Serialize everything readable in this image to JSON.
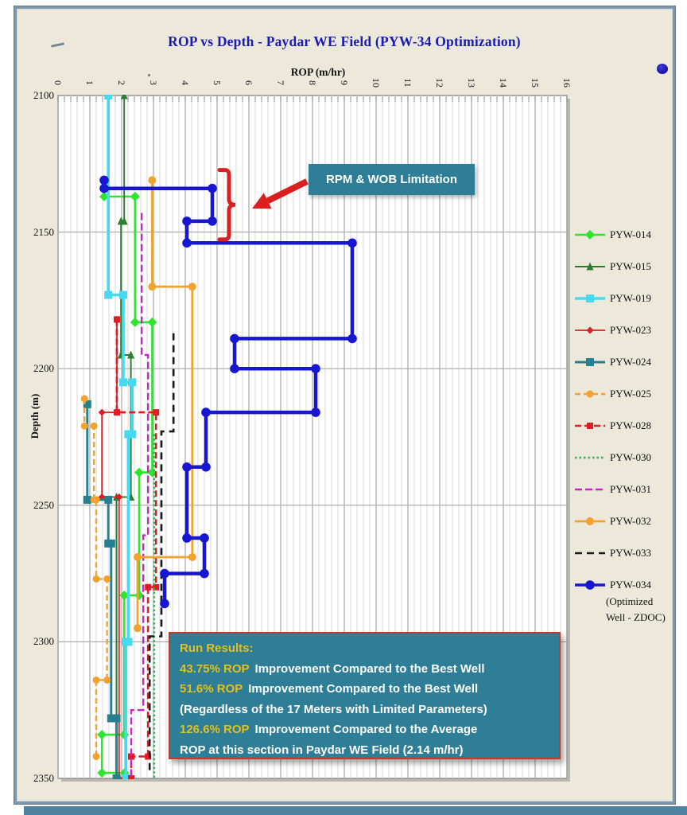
{
  "chart_data": {
    "type": "line",
    "step": true,
    "title": "ROP vs Depth - Paydar WE Field (PYW-34 Optimization)",
    "xlabel": "ROP (m/hr)",
    "ylabel": "Depth (m)",
    "xlim": [
      0,
      16
    ],
    "ylim": [
      2100,
      2350
    ],
    "y_inverted": true,
    "x_ticks": [
      0,
      1,
      2,
      3,
      4,
      5,
      6,
      7,
      8,
      9,
      10,
      11,
      12,
      13,
      14,
      15,
      16
    ],
    "x_minor_step": 0.2,
    "y_ticks": [
      2100,
      2150,
      2200,
      2250,
      2300,
      2350
    ],
    "grid": {
      "minor_color": "#dadada",
      "major_color": "#a6a6a6",
      "horizontal_color": "#a6a6a6",
      "plot_bg": "#ffffff",
      "plot_border": "#8c8c8c",
      "plot_shadow": "#b9b7ae"
    },
    "legend_position": "right",
    "series": [
      {
        "name": "PYW-014",
        "color": "#2ee52e",
        "dash": "",
        "width": 2.6,
        "marker": "diamond",
        "msize": 5,
        "points": [
          [
            1.45,
            2137
          ],
          [
            2.42,
            2137
          ],
          [
            2.42,
            2183
          ],
          [
            2.96,
            2183
          ],
          [
            2.96,
            2238
          ],
          [
            2.55,
            2238
          ],
          [
            2.55,
            2283
          ],
          [
            2.08,
            2283
          ],
          [
            2.08,
            2334
          ],
          [
            1.38,
            2334
          ],
          [
            1.38,
            2348
          ],
          [
            2.09,
            2348
          ]
        ]
      },
      {
        "name": "PYW-015",
        "color": "#2f7d32",
        "dash": "",
        "width": 2,
        "marker": "triangle",
        "msize": 4.5,
        "points": [
          [
            2.08,
            2100
          ],
          [
            2.08,
            2146
          ],
          [
            1.98,
            2146
          ],
          [
            1.98,
            2195
          ],
          [
            2.29,
            2195
          ],
          [
            2.29,
            2247
          ],
          [
            1.84,
            2247
          ],
          [
            1.84,
            2350
          ]
        ]
      },
      {
        "name": "PYW-019",
        "color": "#45d9f2",
        "dash": "",
        "width": 3.6,
        "marker": "square",
        "msize": 5,
        "points": [
          [
            1.58,
            2100
          ],
          [
            1.58,
            2173
          ],
          [
            2.05,
            2173
          ],
          [
            2.05,
            2205
          ],
          [
            2.33,
            2205
          ],
          [
            2.33,
            2224
          ],
          [
            2.21,
            2224
          ],
          [
            2.21,
            2300
          ],
          [
            2.13,
            2300
          ],
          [
            2.13,
            2350
          ]
        ]
      },
      {
        "name": "PYW-023",
        "color": "#dc1e24",
        "dash": "",
        "width": 1.8,
        "marker": "diamond",
        "msize": 3.5,
        "points": [
          [
            1.85,
            2182
          ],
          [
            1.85,
            2216
          ],
          [
            1.38,
            2216
          ],
          [
            1.38,
            2247
          ],
          [
            1.92,
            2247
          ],
          [
            1.92,
            2350
          ]
        ]
      },
      {
        "name": "PYW-024",
        "color": "#27808f",
        "dash": "",
        "width": 3,
        "marker": "square",
        "msize": 5,
        "points": [
          [
            0.92,
            2213
          ],
          [
            0.92,
            2248
          ],
          [
            1.58,
            2248
          ],
          [
            1.58,
            2264
          ],
          [
            1.67,
            2264
          ],
          [
            1.67,
            2328
          ],
          [
            1.84,
            2328
          ],
          [
            1.84,
            2350
          ]
        ]
      },
      {
        "name": "PYW-025",
        "color": "#f2a22e",
        "dash": "7 4",
        "width": 2.4,
        "marker": "circle",
        "msize": 4.5,
        "points": [
          [
            0.83,
            2211
          ],
          [
            0.83,
            2221
          ],
          [
            1.13,
            2221
          ],
          [
            1.13,
            2248
          ],
          [
            1.2,
            2248
          ],
          [
            1.2,
            2277
          ],
          [
            1.54,
            2277
          ],
          [
            1.54,
            2314
          ],
          [
            1.2,
            2314
          ],
          [
            1.2,
            2342
          ]
        ]
      },
      {
        "name": "PYW-028",
        "color": "#e31b23",
        "dash": "8 4",
        "width": 2.6,
        "marker": "square",
        "msize": 4,
        "points": [
          [
            1.85,
            2182
          ],
          [
            1.85,
            2216
          ],
          [
            3.08,
            2216
          ],
          [
            3.08,
            2280
          ],
          [
            2.83,
            2280
          ],
          [
            2.83,
            2342
          ],
          [
            2.3,
            2342
          ],
          [
            2.3,
            2350
          ]
        ]
      },
      {
        "name": "PYW-030",
        "color": "#2fae60",
        "dash": "2.5 3",
        "width": 2.4,
        "marker": "none",
        "msize": 0,
        "points": [
          [
            3.02,
            2224
          ],
          [
            3.02,
            2350
          ]
        ]
      },
      {
        "name": "PYW-031",
        "color": "#c924c9",
        "dash": "9 4",
        "width": 2.4,
        "marker": "none",
        "msize": 0,
        "points": [
          [
            2.63,
            2143
          ],
          [
            2.63,
            2195
          ],
          [
            2.83,
            2195
          ],
          [
            2.83,
            2261
          ],
          [
            2.68,
            2261
          ],
          [
            2.68,
            2325
          ],
          [
            2.3,
            2325
          ],
          [
            2.3,
            2350
          ]
        ]
      },
      {
        "name": "PYW-032",
        "color": "#f2a22e",
        "dash": "",
        "width": 2.8,
        "marker": "circle",
        "msize": 5,
        "points": [
          [
            2.96,
            2131
          ],
          [
            2.96,
            2170
          ],
          [
            4.22,
            2170
          ],
          [
            4.22,
            2269
          ],
          [
            2.5,
            2269
          ],
          [
            2.5,
            2295
          ]
        ]
      },
      {
        "name": "PYW-033",
        "color": "#1a1a1a",
        "dash": "9 6",
        "width": 2.6,
        "marker": "none",
        "msize": 0,
        "points": [
          [
            3.63,
            2187
          ],
          [
            3.63,
            2223
          ],
          [
            3.25,
            2223
          ],
          [
            3.25,
            2298
          ],
          [
            2.88,
            2298
          ],
          [
            2.88,
            2348
          ]
        ]
      },
      {
        "name": "PYW-034",
        "color": "#1717d1",
        "dash": "",
        "width": 4.5,
        "marker": "circle",
        "msize": 5.8,
        "sublabel": "(Optimized\nWell - ZDOC)",
        "points": [
          [
            1.45,
            2131
          ],
          [
            1.45,
            2134
          ],
          [
            4.85,
            2134
          ],
          [
            4.85,
            2146
          ],
          [
            4.05,
            2146
          ],
          [
            4.05,
            2154
          ],
          [
            9.25,
            2154
          ],
          [
            9.25,
            2189
          ],
          [
            5.55,
            2189
          ],
          [
            5.55,
            2200
          ],
          [
            8.1,
            2200
          ],
          [
            8.1,
            2216
          ],
          [
            4.65,
            2216
          ],
          [
            4.65,
            2236
          ],
          [
            4.05,
            2236
          ],
          [
            4.05,
            2262
          ],
          [
            4.6,
            2262
          ],
          [
            4.6,
            2275
          ],
          [
            3.35,
            2275
          ],
          [
            3.35,
            2286
          ]
        ]
      }
    ]
  },
  "annotations": {
    "limitation": {
      "text": "RPM & WOB Limitation",
      "box_color": "#2e7e98",
      "text_color": "#ffffff",
      "arrow_color": "#d91f1f",
      "brace_rop": 5.75,
      "brace_depth_range": [
        2127,
        2153
      ]
    },
    "run_results": {
      "box_color": "#2e7e98",
      "border_color": "#bf3b2b",
      "highlight_color": "#e3c01d",
      "text_color": "#ffffff",
      "lines": [
        {
          "em": "Run Results:",
          "rest": ""
        },
        {
          "em": "43.75% ROP",
          "rest": "Improvement Compared to the Best Well"
        },
        {
          "em": "51.6% ROP",
          "rest": "Improvement Compared to the Best Well"
        },
        {
          "em": "",
          "rest": "(Regardless of the 17 Meters with Limited Parameters)"
        },
        {
          "em": "126.6% ROP",
          "rest": "Improvement Compared to the Average"
        },
        {
          "em": "",
          "rest": "ROP at this section in Paydar WE Field (2.14 m/hr)"
        }
      ]
    }
  }
}
